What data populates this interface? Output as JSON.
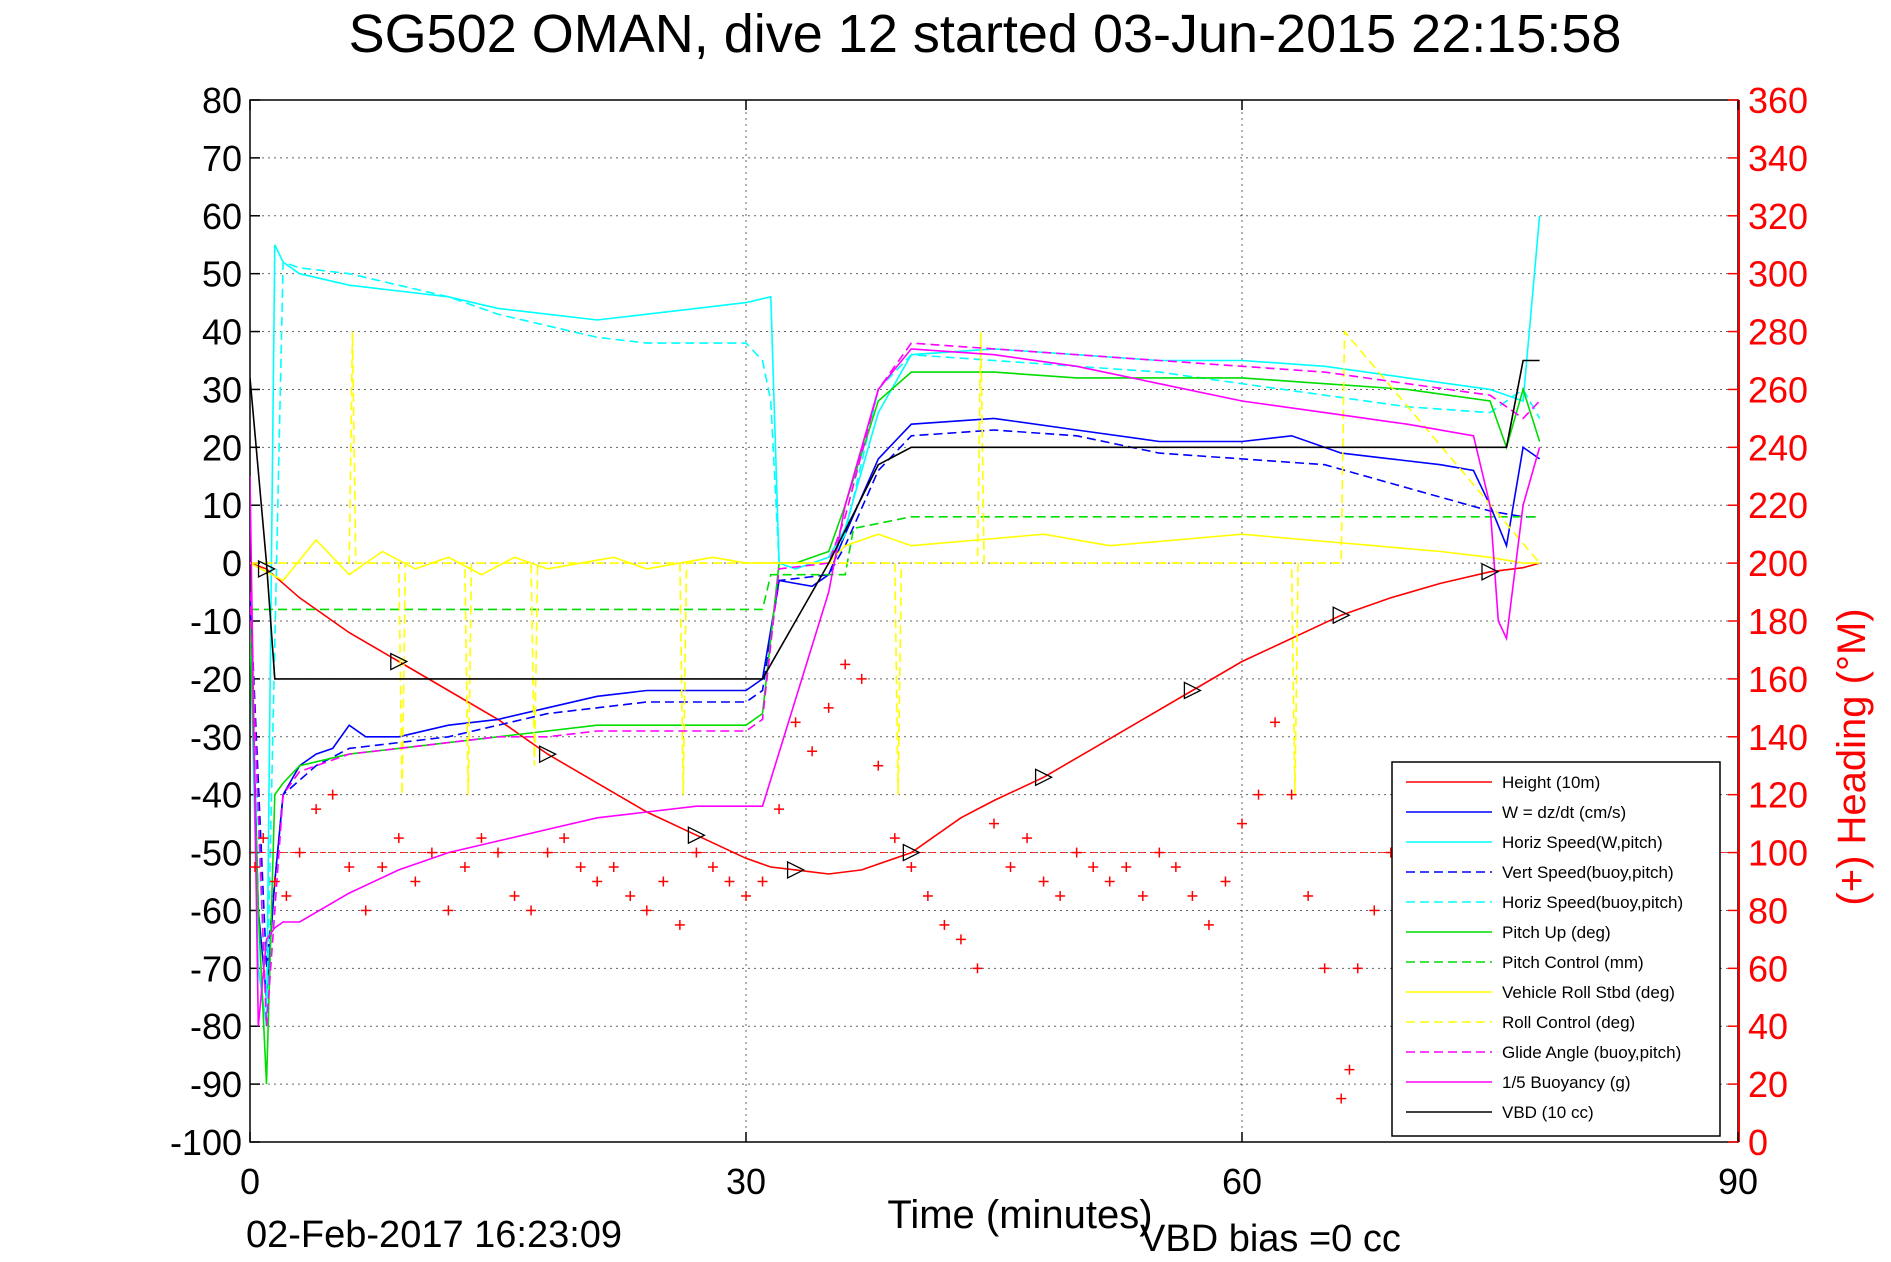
{
  "chart_data": {
    "type": "line",
    "title": "SG502 OMAN, dive 12 started 03-Jun-2015 22:15:58",
    "xlabel": "Time (minutes)",
    "ylabel": "",
    "y2label": "(+) Heading (°M)",
    "xlim": [
      0,
      90
    ],
    "ylim": [
      -100,
      80
    ],
    "y2lim": [
      0,
      360
    ],
    "x_ticks": [
      0,
      30,
      60,
      90
    ],
    "y_ticks": [
      80,
      70,
      60,
      50,
      40,
      30,
      20,
      10,
      0,
      -10,
      -20,
      -30,
      -40,
      -50,
      -60,
      -70,
      -80,
      -90,
      -100
    ],
    "y2_ticks": [
      360,
      340,
      320,
      300,
      280,
      260,
      240,
      220,
      200,
      180,
      160,
      140,
      120,
      100,
      80,
      60,
      40,
      20,
      0
    ],
    "grid": true,
    "legend_position": "bottom-right",
    "footer_date": "02-Feb-2017 16:23:09",
    "footer_note": "VBD bias =0 cc",
    "colors": {
      "height": "#ff0000",
      "w": "#0000ff",
      "horiz": "#00ffff",
      "pitch": "#00dd00",
      "roll": "#ffff00",
      "glide": "#ff00ff",
      "vbd": "#000000",
      "heading": "#ff0000"
    },
    "series": [
      {
        "name": "Height (10m)",
        "color": "#ff0000",
        "dash": "solid",
        "x": [
          0,
          1,
          3,
          6,
          9,
          12,
          15,
          18,
          21,
          24,
          27,
          30,
          31.5,
          33,
          35,
          37,
          40,
          43,
          45,
          48,
          51,
          54,
          57,
          60,
          63,
          66,
          69,
          72,
          75,
          77,
          78
        ],
        "y": [
          0,
          -1,
          -6,
          -12,
          -17,
          -22,
          -27,
          -33,
          -38,
          -43,
          -47,
          -51,
          -52.5,
          -53,
          -53.7,
          -53,
          -50,
          -44,
          -41,
          -37,
          -32,
          -27,
          -22,
          -17,
          -13,
          -9,
          -6,
          -3.5,
          -1.5,
          -0.8,
          0
        ]
      },
      {
        "name": "W = dz/dt (cm/s)",
        "color": "#0000ff",
        "dash": "solid",
        "x": [
          0,
          0.5,
          1,
          1.5,
          2,
          3,
          4,
          5,
          6,
          7,
          9,
          12,
          15,
          18,
          21,
          24,
          27,
          30,
          31,
          32,
          34,
          35,
          36,
          38,
          40,
          45,
          50,
          55,
          60,
          63,
          66,
          69,
          72,
          74,
          75,
          76,
          77,
          78
        ],
        "y": [
          -5,
          -60,
          -75,
          -55,
          -40,
          -35,
          -33,
          -32,
          -28,
          -30,
          -30,
          -28,
          -27,
          -25,
          -23,
          -22,
          -22,
          -22,
          -20,
          -3,
          -4,
          -2,
          5,
          18,
          24,
          25,
          23,
          21,
          21,
          22,
          19,
          18,
          17,
          16,
          10,
          3,
          20,
          18
        ]
      },
      {
        "name": "Horiz Speed(W,pitch)",
        "color": "#00ffff",
        "dash": "solid",
        "x": [
          0,
          0.5,
          1,
          1.5,
          2,
          3,
          6,
          9,
          12,
          15,
          18,
          21,
          24,
          27,
          30,
          31.5,
          32,
          33,
          34,
          35,
          36,
          38,
          40,
          45,
          50,
          55,
          60,
          65,
          70,
          75,
          77,
          78
        ],
        "y": [
          -10,
          -70,
          -80,
          55,
          52,
          50,
          48,
          47,
          46,
          44,
          43,
          42,
          43,
          44,
          45,
          46,
          0,
          -1,
          0,
          1,
          6,
          26,
          36,
          37,
          36,
          35,
          35,
          34,
          32,
          30,
          28,
          60
        ]
      },
      {
        "name": "Vert Speed(buoy,pitch)",
        "color": "#0000ff",
        "dash": "dashed",
        "x": [
          0,
          1,
          2,
          4,
          6,
          9,
          12,
          15,
          18,
          21,
          24,
          27,
          30,
          31,
          32,
          35,
          36,
          38,
          40,
          45,
          50,
          55,
          60,
          65,
          70,
          75,
          77,
          78
        ],
        "y": [
          -5,
          -70,
          -40,
          -35,
          -32,
          -31,
          -30,
          -28,
          -26,
          -25,
          -24,
          -24,
          -24,
          -22,
          -3,
          -2,
          3,
          16,
          22,
          23,
          22,
          19,
          18,
          17,
          13,
          9,
          8,
          8
        ]
      },
      {
        "name": "Horiz Speed(buoy,pitch)",
        "color": "#00ffff",
        "dash": "dashed",
        "x": [
          0,
          1,
          2,
          3,
          6,
          9,
          12,
          15,
          18,
          21,
          24,
          27,
          30,
          31,
          31.5,
          32,
          35,
          36,
          38,
          40,
          45,
          50,
          55,
          60,
          65,
          70,
          75,
          77,
          78
        ],
        "y": [
          -10,
          -80,
          52,
          51,
          50,
          48,
          46,
          43,
          41,
          39,
          38,
          38,
          38,
          35,
          28,
          0,
          0,
          5,
          30,
          36,
          35,
          34,
          33,
          31,
          29,
          27,
          26,
          30,
          25
        ]
      },
      {
        "name": "Pitch Up (deg)",
        "color": "#00dd00",
        "dash": "solid",
        "x": [
          0,
          0.5,
          1,
          1.5,
          2,
          3,
          6,
          9,
          12,
          15,
          18,
          21,
          24,
          27,
          30,
          31,
          32,
          33,
          35,
          36,
          38,
          40,
          45,
          50,
          55,
          60,
          65,
          70,
          75,
          76,
          77,
          78
        ],
        "y": [
          -10,
          -60,
          -90,
          -40,
          -38,
          -35,
          -33,
          -32,
          -31,
          -30,
          -29,
          -28,
          -28,
          -28,
          -28,
          -26,
          0,
          0,
          2,
          10,
          28,
          33,
          33,
          32,
          32,
          32,
          31,
          30,
          28,
          20,
          30,
          21
        ]
      },
      {
        "name": "Pitch Control (mm)",
        "color": "#00dd00",
        "dash": "dashed",
        "x": [
          0,
          1,
          1.5,
          31,
          31.5,
          36,
          36.5,
          40,
          78
        ],
        "y": [
          -8,
          -8,
          -8,
          -8,
          -2,
          -2,
          6,
          8,
          8
        ]
      },
      {
        "name": "Vehicle Roll Stbd (deg)",
        "color": "#ffff00",
        "dash": "solid",
        "x": [
          0,
          2,
          4,
          6,
          8,
          10,
          12,
          14,
          16,
          18,
          20,
          22,
          24,
          26,
          28,
          30,
          31,
          32,
          35,
          36,
          38,
          40,
          44,
          48,
          52,
          56,
          60,
          64,
          68,
          72,
          75,
          77,
          78
        ],
        "y": [
          0,
          -3,
          4,
          -2,
          2,
          -1,
          1,
          -2,
          1,
          -1,
          0,
          1,
          -1,
          0,
          1,
          0,
          0,
          0,
          0,
          3,
          5,
          3,
          4,
          5,
          3,
          4,
          5,
          4,
          3,
          2,
          1,
          0,
          0
        ]
      },
      {
        "name": "Roll Control (deg)",
        "color": "#ffff00",
        "dash": "dashed",
        "x": [
          0,
          6,
          6.2,
          6.4,
          9,
          9.2,
          9.4,
          13,
          13.2,
          13.4,
          17,
          17.2,
          17.4,
          26,
          26.2,
          26.4,
          31,
          39,
          39.2,
          39.4,
          44,
          44.2,
          44.4,
          63,
          63.2,
          63.4,
          66,
          66.2,
          78
        ],
        "y": [
          0,
          0,
          40,
          0,
          0,
          -40,
          0,
          0,
          -40,
          0,
          0,
          -35,
          0,
          0,
          -40,
          0,
          0,
          0,
          -40,
          0,
          0,
          40,
          0,
          0,
          -40,
          0,
          0,
          40,
          0
        ]
      },
      {
        "name": "Glide Angle (buoy,pitch)",
        "color": "#ff00ff",
        "dash": "dashed",
        "x": [
          0,
          1,
          2,
          3,
          6,
          9,
          12,
          15,
          18,
          21,
          24,
          27,
          30,
          31,
          32,
          35,
          36,
          38,
          40,
          45,
          50,
          55,
          60,
          65,
          70,
          75,
          77,
          78
        ],
        "y": [
          -5,
          -80,
          -40,
          -36,
          -33,
          -32,
          -31,
          -30,
          -30,
          -29,
          -29,
          -29,
          -29,
          -27,
          -1,
          0,
          8,
          30,
          38,
          37,
          36,
          35,
          34,
          33,
          31,
          29,
          25,
          28
        ]
      },
      {
        "name": "1/5 Buoyancy (g)",
        "color": "#ff00ff",
        "dash": "solid",
        "x": [
          0,
          0.5,
          1,
          1.5,
          2,
          3,
          6,
          9,
          12,
          15,
          18,
          21,
          24,
          27,
          30,
          31,
          35,
          36,
          38,
          40,
          45,
          50,
          55,
          60,
          65,
          70,
          74,
          75,
          75.5,
          76,
          77,
          78
        ],
        "y": [
          15,
          -80,
          -65,
          -63,
          -62,
          -62,
          -57,
          -53,
          -50,
          -48,
          -46,
          -44,
          -43,
          -42,
          -42,
          -42,
          -5,
          10,
          30,
          37,
          36,
          34,
          31,
          28,
          26,
          24,
          22,
          10,
          -10,
          -13,
          10,
          20
        ]
      },
      {
        "name": "VBD (10 cc)",
        "color": "#000000",
        "dash": "solid",
        "x": [
          0,
          1,
          1.5,
          2,
          31,
          33,
          35,
          38,
          40,
          60,
          75,
          76,
          77,
          78
        ],
        "y": [
          32,
          0,
          -20,
          -20,
          -20,
          -10,
          0,
          17,
          20,
          20,
          20,
          20,
          35,
          35
        ]
      }
    ],
    "heading_series": {
      "name": "(+) Heading (°M)",
      "axis": "right",
      "color": "#ff0000",
      "marker": "+",
      "x": [
        0.3,
        0.8,
        1.5,
        2.2,
        3,
        4,
        5,
        6,
        7,
        8,
        9,
        10,
        11,
        12,
        13,
        14,
        15,
        16,
        17,
        18,
        19,
        20,
        21,
        22,
        23,
        24,
        25,
        26,
        27,
        28,
        29,
        30,
        31,
        32,
        33,
        34,
        35,
        36,
        37,
        38,
        39,
        40,
        41,
        42,
        43,
        44,
        45,
        46,
        47,
        48,
        49,
        50,
        51,
        52,
        53,
        54,
        55,
        56,
        57,
        58,
        59,
        60,
        61,
        62,
        63,
        64,
        65,
        66,
        66.5,
        67,
        68,
        69,
        70
      ],
      "y": [
        95,
        105,
        90,
        85,
        100,
        115,
        120,
        95,
        80,
        95,
        105,
        90,
        100,
        80,
        95,
        105,
        100,
        85,
        80,
        100,
        105,
        95,
        90,
        95,
        85,
        80,
        90,
        75,
        100,
        95,
        90,
        85,
        90,
        115,
        145,
        135,
        150,
        165,
        160,
        130,
        105,
        95,
        85,
        75,
        70,
        60,
        110,
        95,
        105,
        90,
        85,
        100,
        95,
        90,
        95,
        85,
        100,
        95,
        85,
        75,
        90,
        110,
        120,
        145,
        120,
        85,
        60,
        15,
        25,
        60,
        80,
        100,
        105
      ]
    }
  }
}
